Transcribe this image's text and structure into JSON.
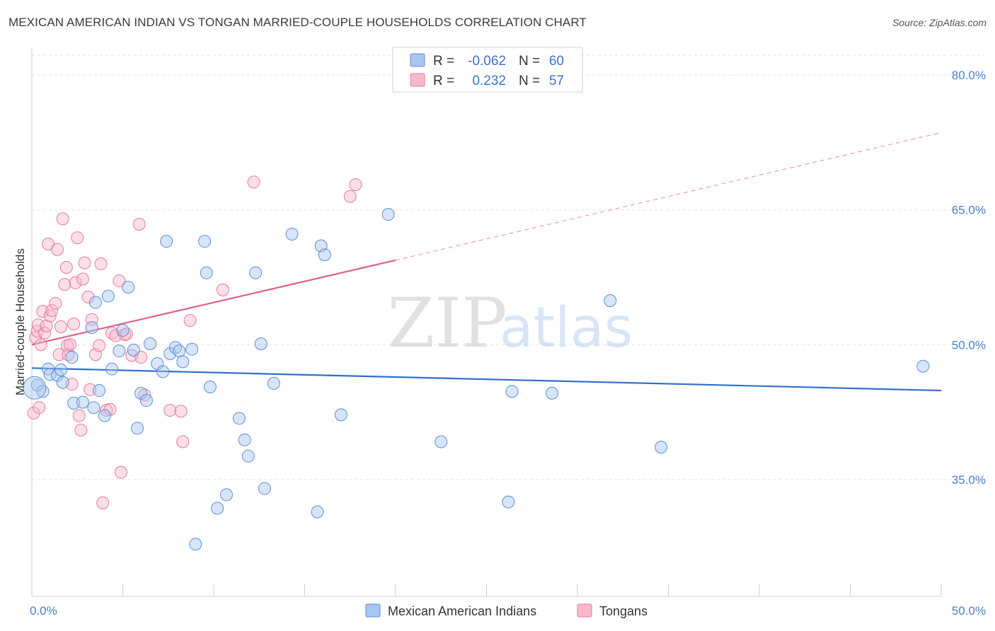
{
  "title": "MEXICAN AMERICAN INDIAN VS TONGAN MARRIED-COUPLE HOUSEHOLDS CORRELATION CHART",
  "source": "Source: ZipAtlas.com",
  "watermark": {
    "zip": "ZIP",
    "atlas": "atlas"
  },
  "legend": {
    "r_label": "R =",
    "n_label": "N =",
    "rows": [
      {
        "r": "-0.062",
        "n": "60"
      },
      {
        "r": "0.232",
        "n": "57"
      }
    ]
  },
  "bottom_legend": [
    "Mexican American Indians",
    "Tongans"
  ],
  "colors": {
    "blue_fill": "#a9c6ef",
    "blue_stroke": "#5b8fd6",
    "blue_line": "#2f6fcf",
    "pink_fill": "#f6b9cc",
    "pink_stroke": "#e8799c",
    "pink_line": "#e0608a"
  },
  "chart_data": {
    "type": "scatter",
    "xlabel": "",
    "ylabel": "Married-couple Households",
    "xlim": [
      0,
      50
    ],
    "ylim": [
      22,
      83
    ],
    "y_ticks": [
      {
        "value": 80,
        "label": "80.0%"
      },
      {
        "value": 65,
        "label": "65.0%"
      },
      {
        "value": 50,
        "label": "50.0%"
      },
      {
        "value": 35,
        "label": "35.0%"
      }
    ],
    "x_tick_labels": [
      {
        "value": 0,
        "label": "0.0%"
      },
      {
        "value": 50,
        "label": "50.0%"
      }
    ],
    "grid": true,
    "legend_position": "top-center",
    "series": [
      {
        "name": "Mexican American Indians",
        "points": [
          [
            0.3,
            45.5
          ],
          [
            0.6,
            44.8
          ],
          [
            0.9,
            47.3
          ],
          [
            1.0,
            46.7
          ],
          [
            1.4,
            46.6
          ],
          [
            1.6,
            47.2
          ],
          [
            1.7,
            45.8
          ],
          [
            2.2,
            48.6
          ],
          [
            2.3,
            43.5
          ],
          [
            2.8,
            43.6
          ],
          [
            3.5,
            54.7
          ],
          [
            3.3,
            51.9
          ],
          [
            3.4,
            43.0
          ],
          [
            3.7,
            44.9
          ],
          [
            4.0,
            42.1
          ],
          [
            4.2,
            55.4
          ],
          [
            4.4,
            47.3
          ],
          [
            4.8,
            49.3
          ],
          [
            5.0,
            51.6
          ],
          [
            5.3,
            56.4
          ],
          [
            5.6,
            49.4
          ],
          [
            5.8,
            40.7
          ],
          [
            6.0,
            44.6
          ],
          [
            6.3,
            43.8
          ],
          [
            6.5,
            50.1
          ],
          [
            6.9,
            47.9
          ],
          [
            7.2,
            47.0
          ],
          [
            7.4,
            61.5
          ],
          [
            7.6,
            49.0
          ],
          [
            7.9,
            49.7
          ],
          [
            8.1,
            49.3
          ],
          [
            8.3,
            48.1
          ],
          [
            8.8,
            49.5
          ],
          [
            9.0,
            27.8
          ],
          [
            9.5,
            61.5
          ],
          [
            9.6,
            58.0
          ],
          [
            9.8,
            45.3
          ],
          [
            10.2,
            31.8
          ],
          [
            10.7,
            33.3
          ],
          [
            11.4,
            41.8
          ],
          [
            11.7,
            39.4
          ],
          [
            11.9,
            37.6
          ],
          [
            12.3,
            58.0
          ],
          [
            12.6,
            50.1
          ],
          [
            12.8,
            34.0
          ],
          [
            13.3,
            45.7
          ],
          [
            14.3,
            62.3
          ],
          [
            15.7,
            31.4
          ],
          [
            15.9,
            61.0
          ],
          [
            16.1,
            60.0
          ],
          [
            17.0,
            42.2
          ],
          [
            19.6,
            64.5
          ],
          [
            22.5,
            39.2
          ],
          [
            26.2,
            32.5
          ],
          [
            26.4,
            44.8
          ],
          [
            28.6,
            44.6
          ],
          [
            31.8,
            54.9
          ],
          [
            34.6,
            38.6
          ],
          [
            49.0,
            47.6
          ],
          [
            0.15,
            45.2
          ]
        ]
      },
      {
        "name": "Tongans",
        "points": [
          [
            0.1,
            42.4
          ],
          [
            0.2,
            50.8
          ],
          [
            0.3,
            51.5
          ],
          [
            0.35,
            52.2
          ],
          [
            0.5,
            50.0
          ],
          [
            0.6,
            53.7
          ],
          [
            0.7,
            51.3
          ],
          [
            0.8,
            52.1
          ],
          [
            0.9,
            61.2
          ],
          [
            1.0,
            53.2
          ],
          [
            1.1,
            53.8
          ],
          [
            1.3,
            54.6
          ],
          [
            1.4,
            60.6
          ],
          [
            1.5,
            48.9
          ],
          [
            1.6,
            52.0
          ],
          [
            1.7,
            64.0
          ],
          [
            1.8,
            56.7
          ],
          [
            1.9,
            58.6
          ],
          [
            1.95,
            49.9
          ],
          [
            2.0,
            48.9
          ],
          [
            2.1,
            50.0
          ],
          [
            2.2,
            45.6
          ],
          [
            2.3,
            52.3
          ],
          [
            2.4,
            56.9
          ],
          [
            2.5,
            61.9
          ],
          [
            2.6,
            42.1
          ],
          [
            2.7,
            40.5
          ],
          [
            2.8,
            57.3
          ],
          [
            2.9,
            59.1
          ],
          [
            3.1,
            55.3
          ],
          [
            3.2,
            45.0
          ],
          [
            3.3,
            52.8
          ],
          [
            3.5,
            48.9
          ],
          [
            3.7,
            49.9
          ],
          [
            3.8,
            59.0
          ],
          [
            3.9,
            32.4
          ],
          [
            4.1,
            42.7
          ],
          [
            4.3,
            42.8
          ],
          [
            4.4,
            51.3
          ],
          [
            4.6,
            51.0
          ],
          [
            4.8,
            57.1
          ],
          [
            4.9,
            35.8
          ],
          [
            5.1,
            51.1
          ],
          [
            5.2,
            51.2
          ],
          [
            5.5,
            48.8
          ],
          [
            5.9,
            63.4
          ],
          [
            6.2,
            44.4
          ],
          [
            6.0,
            48.6
          ],
          [
            7.6,
            42.7
          ],
          [
            8.2,
            42.6
          ],
          [
            8.3,
            39.2
          ],
          [
            8.7,
            52.7
          ],
          [
            10.5,
            56.1
          ],
          [
            12.2,
            68.1
          ],
          [
            17.5,
            66.5
          ],
          [
            17.8,
            67.8
          ],
          [
            0.4,
            43.0
          ]
        ]
      }
    ],
    "trend_lines": [
      {
        "series": "Mexican American Indians",
        "x": [
          0,
          50
        ],
        "y": [
          47.4,
          44.9
        ],
        "style": "solid"
      },
      {
        "series": "Tongans",
        "solid_x": [
          0,
          20
        ],
        "solid_y": [
          50.0,
          59.4
        ],
        "dashed_x": [
          20,
          50
        ],
        "dashed_y": [
          59.4,
          73.6
        ]
      }
    ]
  }
}
